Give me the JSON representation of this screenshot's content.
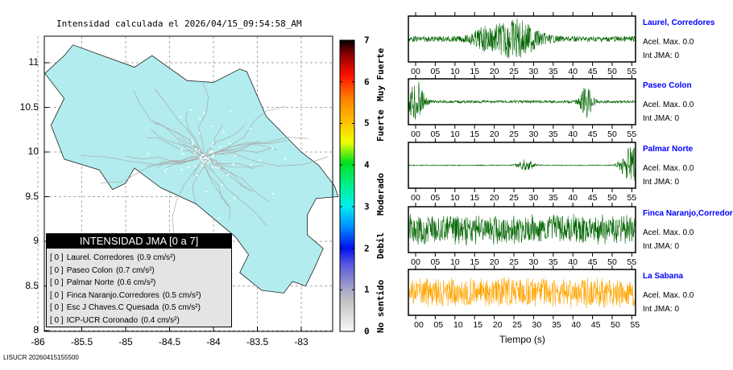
{
  "map": {
    "title": "Intensidad calculada el 2026/04/15_09:54:58_AM",
    "y_ticks": [
      "11",
      "10.5",
      "10",
      "9.5",
      "9",
      "8.5",
      "8"
    ],
    "x_ticks": [
      "-86",
      "-85.5",
      "-85",
      "-84.5",
      "-84",
      "-83.5",
      "-83"
    ],
    "land_color": "#b2ecee",
    "legend": {
      "title": "INTENSIDAD JMA [0 a 7]",
      "rows": [
        {
          "int": "[ 0 ]",
          "name": "Laurel. Corredores",
          "value": "(0.9 cm/s²)"
        },
        {
          "int": "[ 0 ]",
          "name": "Paseo Colon",
          "value": "(0.7 cm/s²)"
        },
        {
          "int": "[ 0 ]",
          "name": "Palmar Norte",
          "value": "(0.6 cm/s²)"
        },
        {
          "int": "[ 0 ]",
          "name": "Finca Naranjo.Corredores",
          "value": "(0.5 cm/s²)"
        },
        {
          "int": "[ 0 ]",
          "name": "Esc J Chaves.C Quesada",
          "value": "(0.5 cm/s²)"
        },
        {
          "int": "[ 0 ]",
          "name": "ICP-UCR Coronado",
          "value": "(0.4 cm/s²)"
        }
      ]
    }
  },
  "colorbar": {
    "ticks": [
      "0",
      "1",
      "2",
      "3",
      "4",
      "5",
      "6",
      "7"
    ],
    "categories": [
      "No sentido",
      "Debil",
      "Moderado",
      "Fuerte",
      "Muy Fuerte"
    ]
  },
  "stations": [
    {
      "name": "Laurel, Corredores",
      "acel": "Acel. Max. 0.0",
      "int": "Int JMA: 0",
      "color": "#006400"
    },
    {
      "name": "Paseo Colon",
      "acel": "Acel. Max. 0.0",
      "int": "Int JMA: 0",
      "color": "#006400"
    },
    {
      "name": "Palmar Norte",
      "acel": "Acel. Max. 0.0",
      "int": "Int JMA: 0",
      "color": "#006400"
    },
    {
      "name": "Finca Naranjo,Corredor",
      "acel": "Acel. Max. 0.0",
      "int": "Int JMA: 0",
      "color": "#006400"
    },
    {
      "name": "La Sabana",
      "acel": "Acel. Max. 0.0",
      "int": "Int JMA: 0",
      "color": "#ffa500"
    }
  ],
  "time_ticks": [
    "00",
    "05",
    "10",
    "15",
    "20",
    "25",
    "30",
    "35",
    "40",
    "45",
    "50",
    "55"
  ],
  "time_axis_label": "Tiempo (s)",
  "footer": "LISUCR 20260415155500"
}
